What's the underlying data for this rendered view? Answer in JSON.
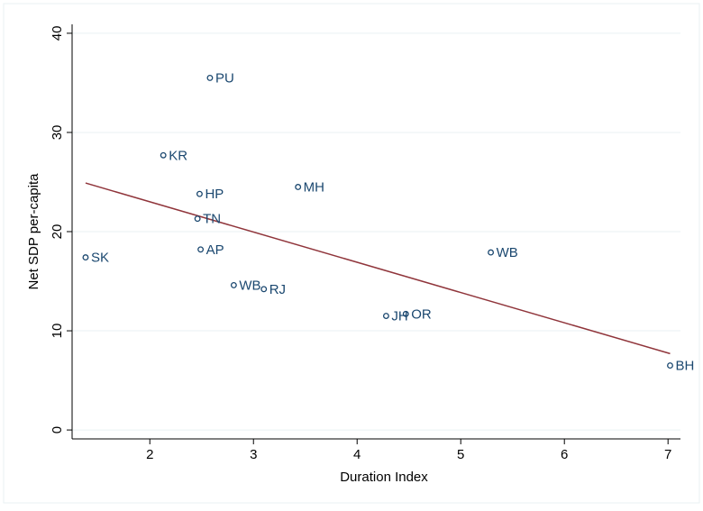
{
  "chart_data": {
    "type": "scatter",
    "x_label": "Duration Index",
    "y_label": "Net SDP per-capita",
    "labels": [
      "PU",
      "KR",
      "HP",
      "MH",
      "TN",
      "AP",
      "SK",
      "WB",
      "WB",
      "RJ",
      "JH",
      "OR",
      "BH"
    ],
    "x": [
      2.58,
      2.13,
      2.48,
      3.43,
      2.46,
      2.49,
      1.38,
      5.29,
      2.81,
      3.1,
      4.28,
      4.47,
      7.02
    ],
    "values": [
      35.5,
      27.7,
      23.8,
      24.5,
      21.3,
      18.2,
      17.4,
      17.9,
      14.6,
      14.2,
      11.5,
      11.7,
      6.5
    ],
    "color": "#1a476f",
    "fit": {
      "x": [
        1.38,
        7.02
      ],
      "values": [
        24.9,
        7.7
      ],
      "color": "#90353b"
    },
    "xlim": [
      1.25,
      7.12
    ],
    "ylim": [
      -0.9,
      40.9
    ],
    "xticks": [
      2,
      3,
      4,
      5,
      6,
      7
    ],
    "yticks": [
      0,
      10,
      20,
      30,
      40
    ],
    "grid": true
  }
}
